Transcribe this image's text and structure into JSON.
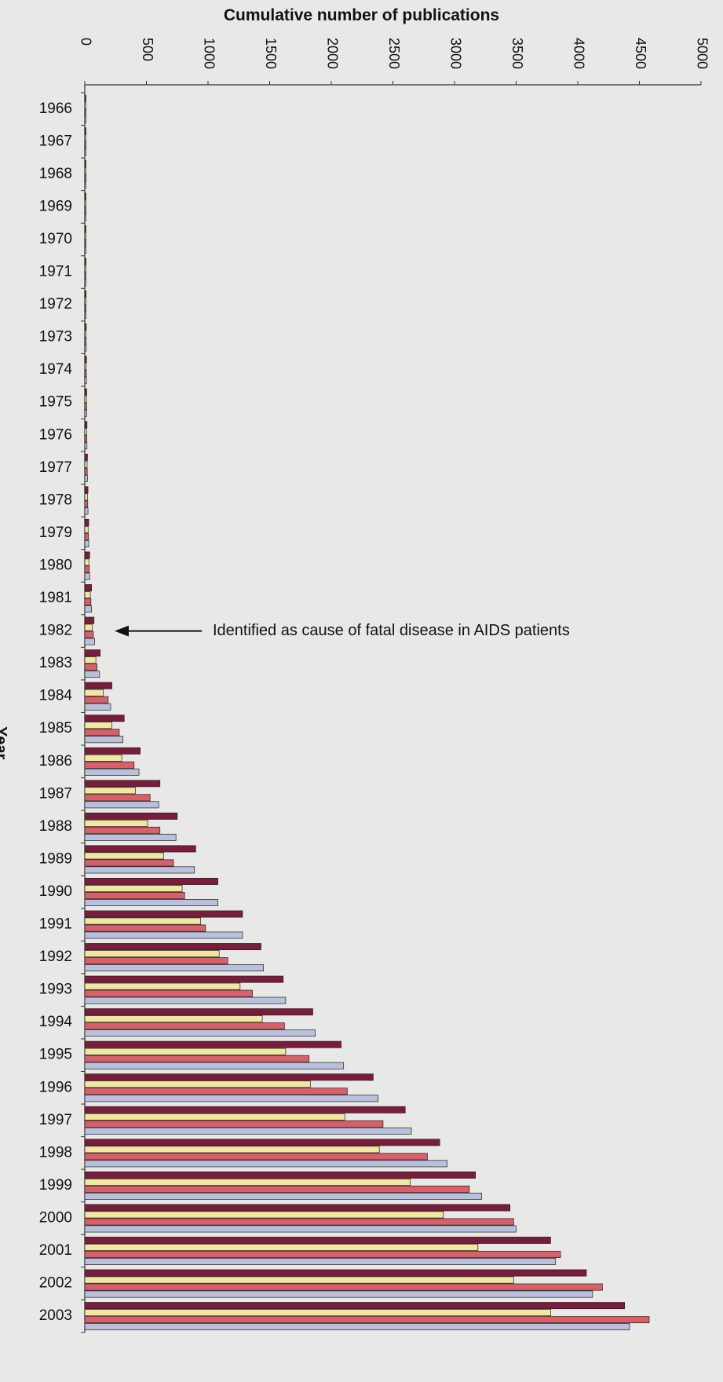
{
  "chart_data": {
    "type": "bar",
    "orientation": "horizontal",
    "title": "",
    "xlabel": "Cumulative number of publications",
    "ylabel": "Year",
    "xlim": [
      0,
      5000
    ],
    "x_ticks": [
      "0",
      "500",
      "1000",
      "1500",
      "2000",
      "2500",
      "3000",
      "3500",
      "4000",
      "4500",
      "5000"
    ],
    "categories": [
      "1966",
      "1967",
      "1968",
      "1969",
      "1970",
      "1971",
      "1972",
      "1973",
      "1974",
      "1975",
      "1976",
      "1977",
      "1978",
      "1979",
      "1980",
      "1981",
      "1982",
      "1983",
      "1984",
      "1985",
      "1986",
      "1987",
      "1988",
      "1989",
      "1990",
      "1991",
      "1992",
      "1993",
      "1994",
      "1995",
      "1996",
      "1997",
      "1998",
      "1999",
      "2000",
      "2001",
      "2002",
      "2003"
    ],
    "series": [
      {
        "color": "#7a1c3c",
        "values": [
          4,
          6,
          7,
          8,
          9,
          10,
          11,
          12,
          14,
          16,
          18,
          22,
          26,
          32,
          40,
          55,
          75,
          125,
          220,
          320,
          450,
          610,
          750,
          900,
          1080,
          1280,
          1430,
          1610,
          1850,
          2080,
          2340,
          2600,
          2880,
          3170,
          3450,
          3780,
          4070,
          4380
        ]
      },
      {
        "color": "#f2e6a0",
        "values": [
          3,
          4,
          5,
          6,
          7,
          8,
          9,
          10,
          12,
          14,
          16,
          19,
          22,
          27,
          33,
          45,
          60,
          90,
          150,
          220,
          300,
          410,
          510,
          640,
          790,
          940,
          1090,
          1260,
          1440,
          1630,
          1830,
          2110,
          2390,
          2640,
          2910,
          3190,
          3480,
          3780
        ]
      },
      {
        "color": "#d9606a",
        "values": [
          4,
          5,
          6,
          7,
          8,
          9,
          10,
          11,
          13,
          15,
          17,
          20,
          24,
          30,
          37,
          50,
          70,
          100,
          190,
          280,
          400,
          530,
          610,
          720,
          810,
          980,
          1160,
          1360,
          1620,
          1820,
          2130,
          2420,
          2780,
          3120,
          3480,
          3860,
          4200,
          4580
        ]
      },
      {
        "color": "#b8c0dc",
        "values": [
          4,
          5,
          6,
          7,
          8,
          9,
          10,
          12,
          14,
          16,
          18,
          22,
          26,
          32,
          40,
          55,
          80,
          120,
          210,
          310,
          440,
          600,
          740,
          890,
          1080,
          1280,
          1450,
          1630,
          1870,
          2100,
          2380,
          2650,
          2940,
          3220,
          3500,
          3820,
          4120,
          4420
        ]
      }
    ],
    "annotation": {
      "year": "1982",
      "text": "Identified as cause of fatal disease in AIDS patients"
    },
    "grid": false,
    "legend": "none"
  }
}
